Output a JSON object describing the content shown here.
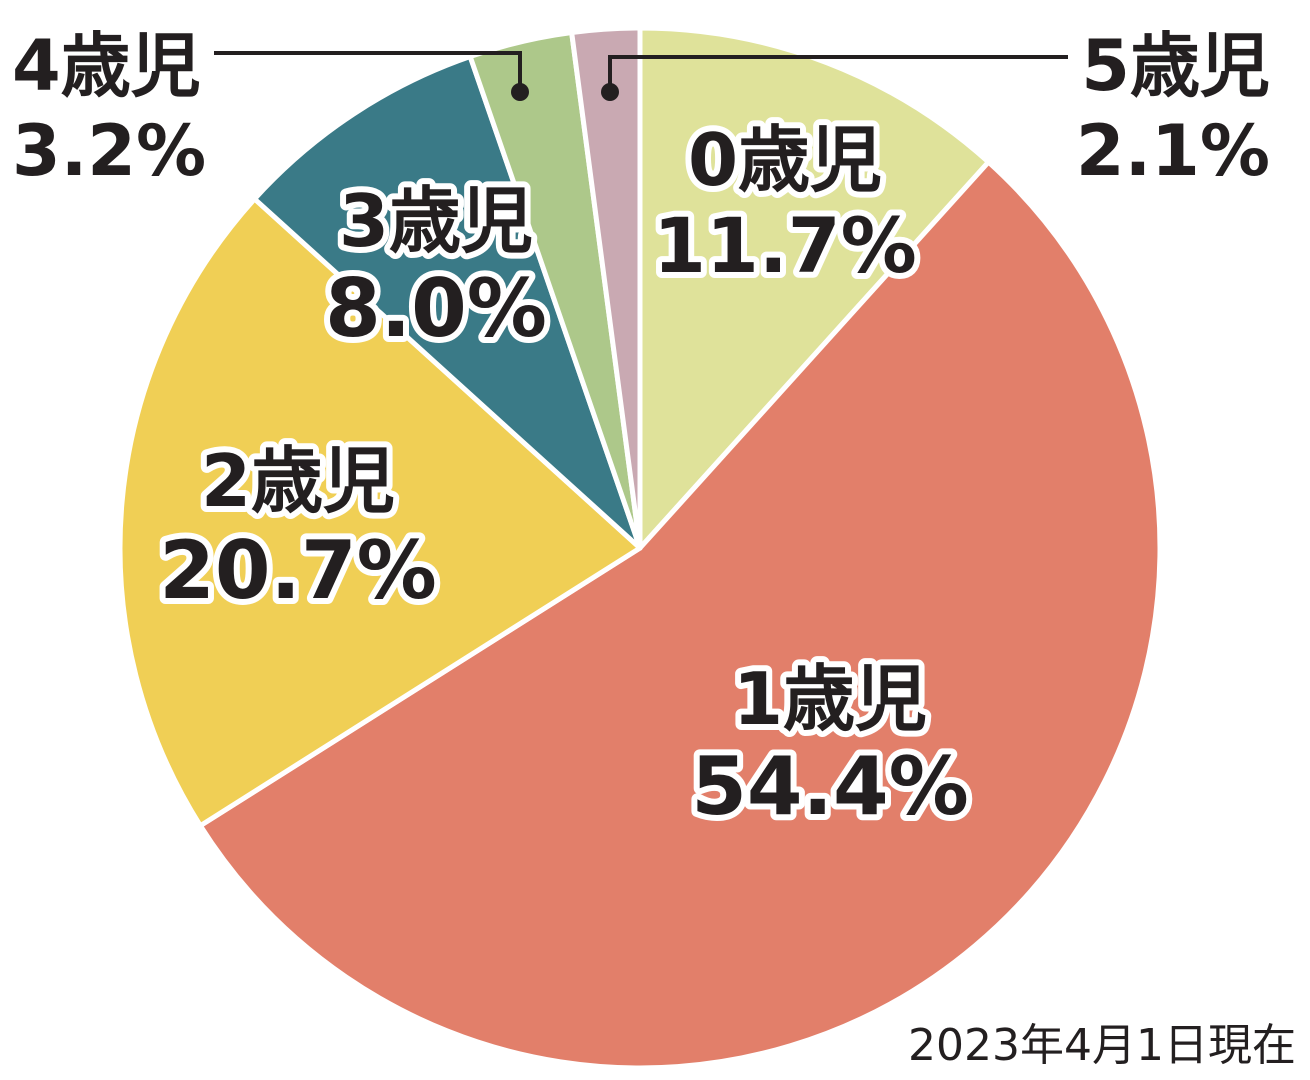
{
  "chart_data": {
    "type": "pie",
    "slices": [
      {
        "label": "0歳児",
        "value": 11.7,
        "display": "11.7%",
        "color": "#dfe29a"
      },
      {
        "label": "1歳児",
        "value": 54.4,
        "display": "54.4%",
        "color": "#e27f6a"
      },
      {
        "label": "2歳児",
        "value": 20.7,
        "display": "20.7%",
        "color": "#f0cf55"
      },
      {
        "label": "3歳児",
        "value": 8.0,
        "display": "8.0%",
        "color": "#3a7a87"
      },
      {
        "label": "4歳児",
        "value": 3.2,
        "display": "3.2%",
        "color": "#adc88a"
      },
      {
        "label": "5歳児",
        "value": 2.1,
        "display": "2.1%",
        "color": "#c9a9b2"
      }
    ],
    "start": "top",
    "direction": "clockwise",
    "annotation": "2023年4月1日現在"
  }
}
